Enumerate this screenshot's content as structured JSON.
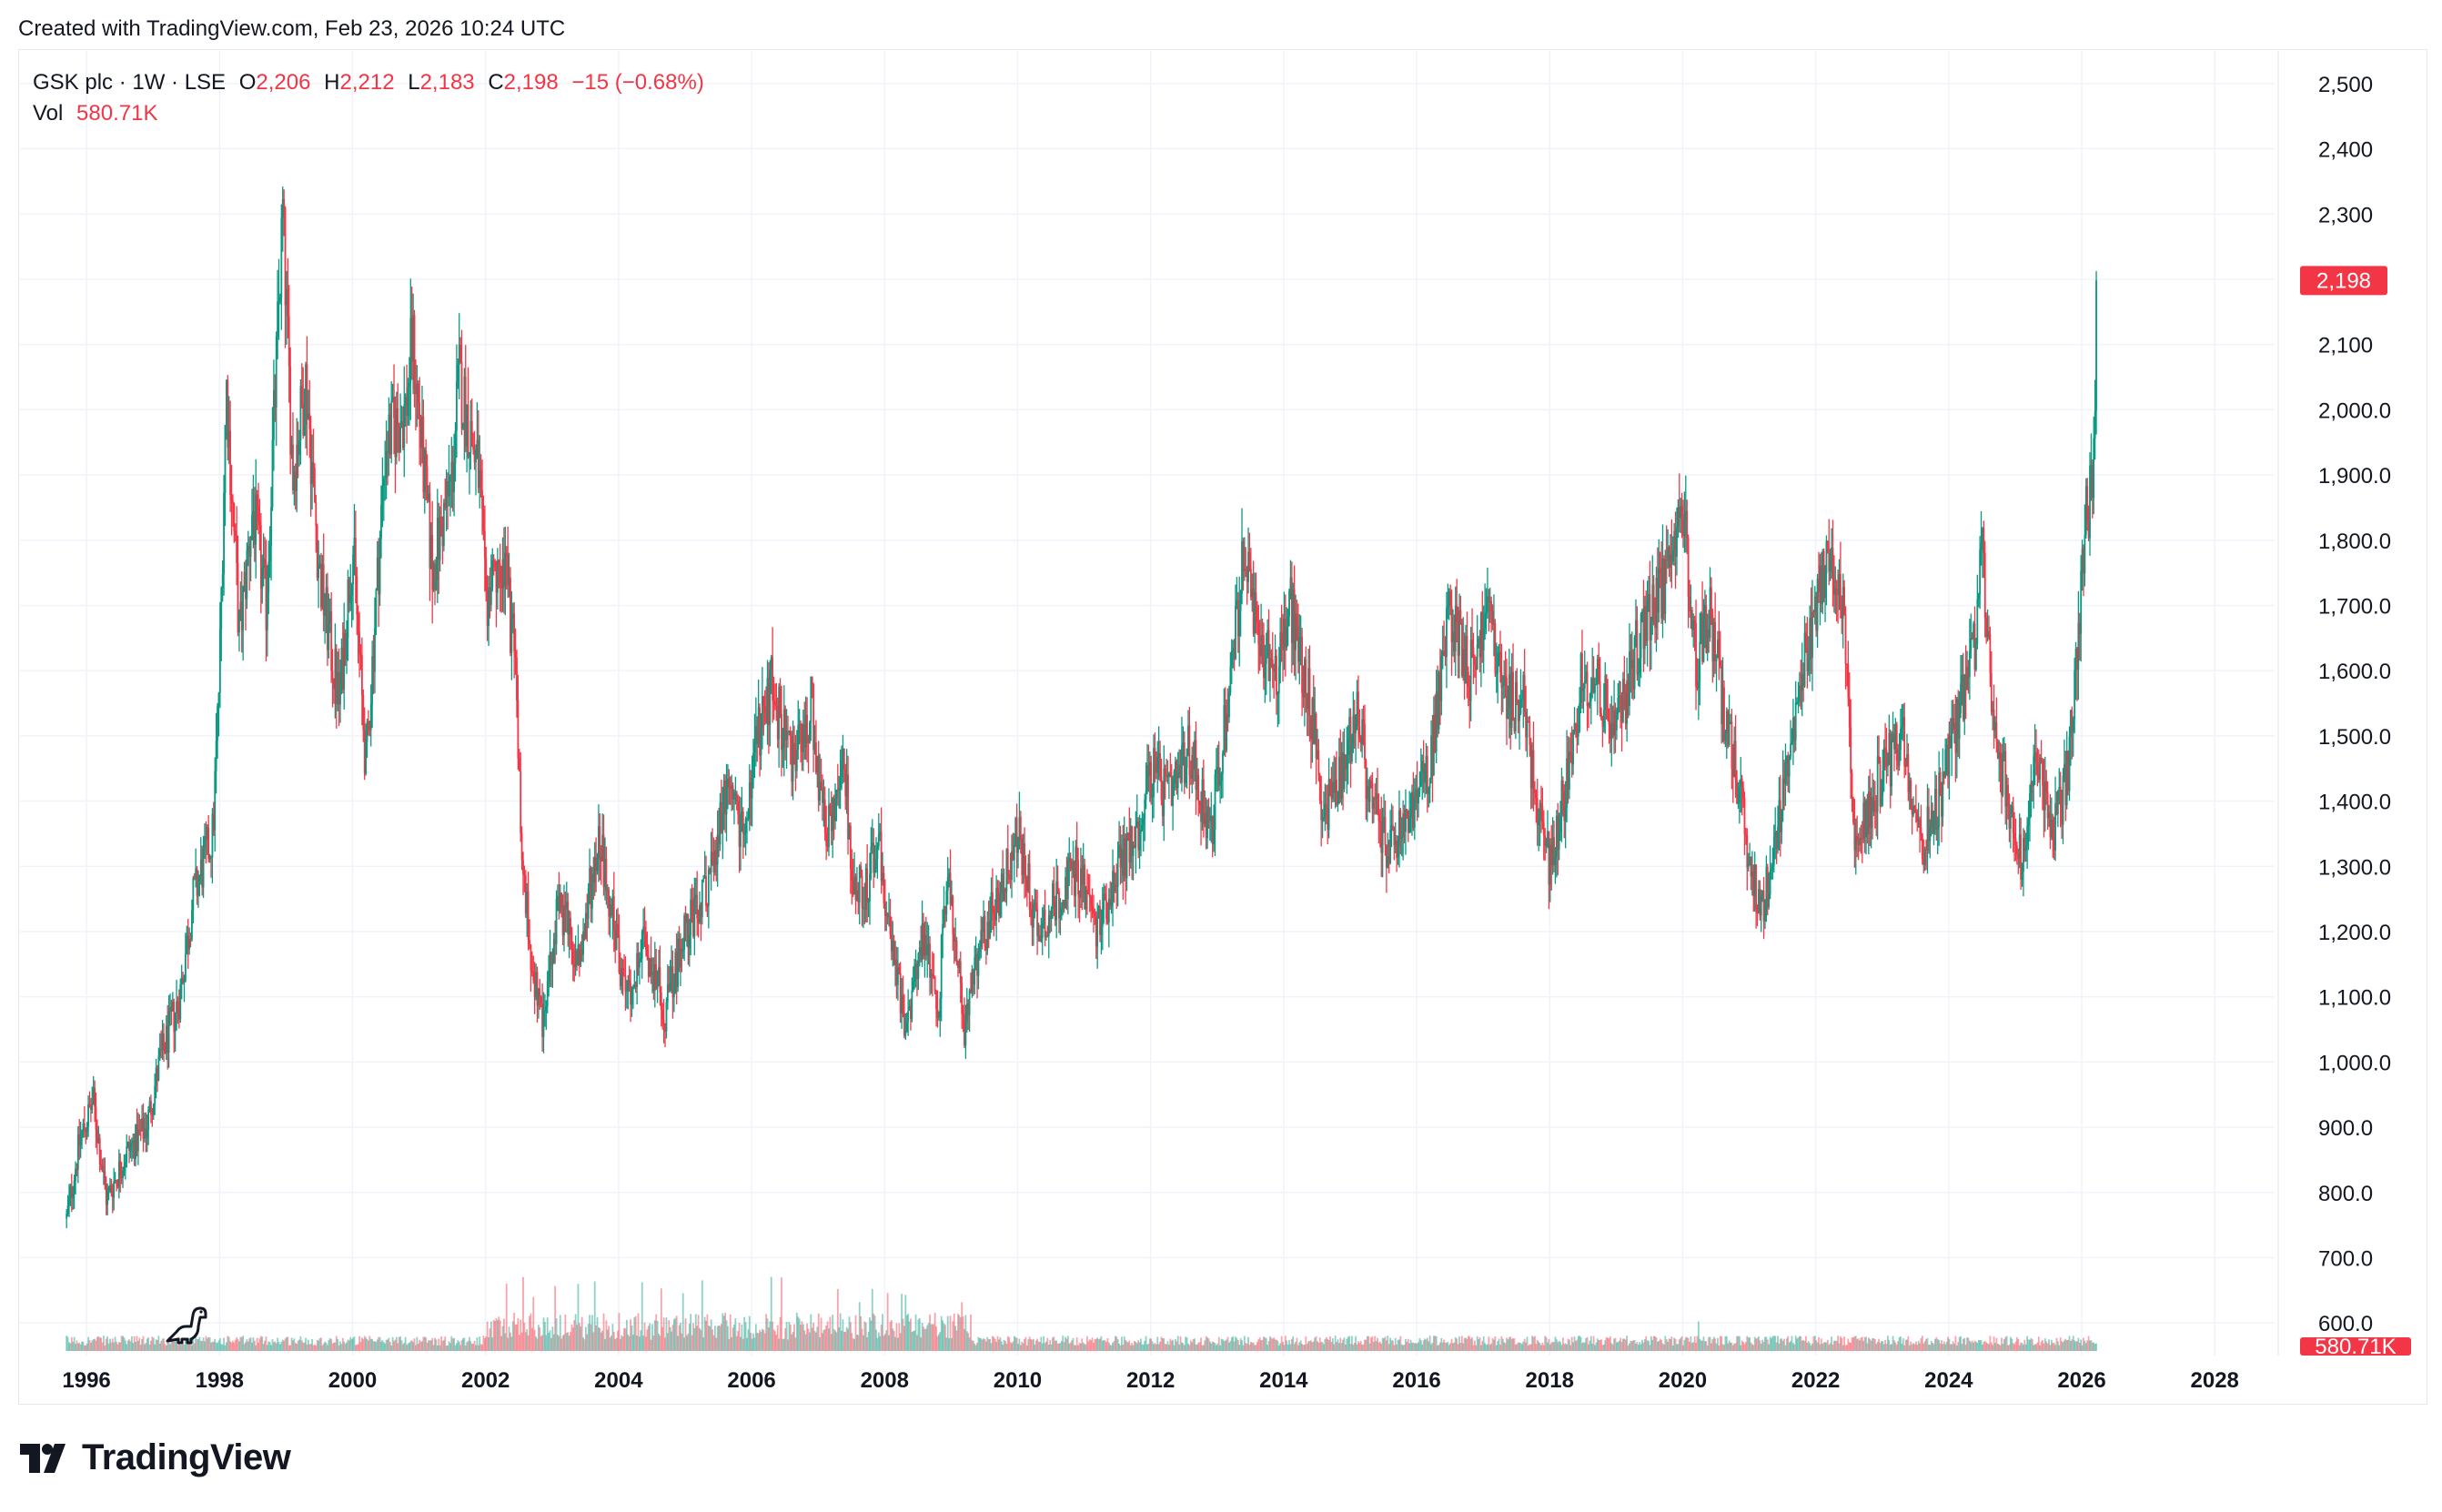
{
  "header": {
    "created_text": "Created with TradingView.com, Feb 23, 2026 10:24 UTC"
  },
  "legend": {
    "symbol": "GSK plc · 1W · LSE",
    "open_label": "O",
    "open": "2,206",
    "high_label": "H",
    "high": "2,212",
    "low_label": "L",
    "low": "2,183",
    "close_label": "C",
    "close": "2,198",
    "change": "−15 (−0.68%)",
    "vol_label": "Vol",
    "vol": "580.71K"
  },
  "price_tag": "2,198",
  "vol_tag": "580.71K",
  "brand": {
    "name": "TradingView",
    "icon": "tradingview-logo-icon"
  },
  "colors": {
    "up": "#089981",
    "down": "#f23645",
    "grid": "#f0f3fa",
    "text": "#131722"
  },
  "chart_data": {
    "type": "candlestick",
    "interval": "1W",
    "y_axis": {
      "min": 650,
      "max": 2550,
      "ticks": [
        "2,500",
        "2,400",
        "2,300",
        "2,200",
        "2,100",
        "2,000.0",
        "1,900.0",
        "1,800.0",
        "1,700.0",
        "1,600.0",
        "1,500.0",
        "1,400.0",
        "1,300.0",
        "1,200.0",
        "1,100.0",
        "1,000.0",
        "900.0",
        "800.0",
        "700.0",
        "600.0"
      ]
    },
    "x_axis": {
      "min": 1995.0,
      "max": 2028.9,
      "ticks": [
        "1996",
        "1998",
        "2000",
        "2002",
        "2004",
        "2006",
        "2008",
        "2010",
        "2012",
        "2014",
        "2016",
        "2018",
        "2020",
        "2022",
        "2024",
        "2026",
        "2028"
      ]
    },
    "price_path": [
      [
        1995.7,
        760
      ],
      [
        1995.9,
        880
      ],
      [
        1996.1,
        940
      ],
      [
        1996.3,
        790
      ],
      [
        1996.6,
        860
      ],
      [
        1996.9,
        900
      ],
      [
        1997.1,
        1000
      ],
      [
        1997.4,
        1100
      ],
      [
        1997.6,
        1250
      ],
      [
        1997.9,
        1350
      ],
      [
        1998.0,
        1600
      ],
      [
        1998.1,
        2040
      ],
      [
        1998.3,
        1650
      ],
      [
        1998.5,
        1850
      ],
      [
        1998.7,
        1700
      ],
      [
        1998.95,
        2300
      ],
      [
        1999.1,
        1900
      ],
      [
        1999.3,
        2050
      ],
      [
        1999.5,
        1750
      ],
      [
        1999.8,
        1550
      ],
      [
        2000.0,
        1800
      ],
      [
        2000.2,
        1450
      ],
      [
        2000.5,
        1950
      ],
      [
        2000.8,
        2000
      ],
      [
        2000.9,
        2110
      ],
      [
        2001.2,
        1750
      ],
      [
        2001.5,
        1900
      ],
      [
        2001.6,
        2050
      ],
      [
        2001.9,
        1900
      ],
      [
        2002.0,
        1700
      ],
      [
        2002.3,
        1750
      ],
      [
        2002.45,
        1600
      ],
      [
        2002.55,
        1300
      ],
      [
        2002.7,
        1150
      ],
      [
        2002.85,
        1050
      ],
      [
        2003.1,
        1250
      ],
      [
        2003.4,
        1150
      ],
      [
        2003.7,
        1350
      ],
      [
        2004.1,
        1100
      ],
      [
        2004.4,
        1180
      ],
      [
        2004.7,
        1080
      ],
      [
        2005.0,
        1200
      ],
      [
        2005.3,
        1250
      ],
      [
        2005.6,
        1400
      ],
      [
        2005.9,
        1350
      ],
      [
        2006.1,
        1500
      ],
      [
        2006.3,
        1580
      ],
      [
        2006.6,
        1450
      ],
      [
        2006.9,
        1550
      ],
      [
        2007.1,
        1350
      ],
      [
        2007.4,
        1450
      ],
      [
        2007.5,
        1300
      ],
      [
        2007.7,
        1250
      ],
      [
        2007.9,
        1350
      ],
      [
        2008.1,
        1180
      ],
      [
        2008.3,
        1050
      ],
      [
        2008.6,
        1200
      ],
      [
        2008.8,
        1080
      ],
      [
        2008.95,
        1300
      ],
      [
        2009.2,
        1050
      ],
      [
        2009.5,
        1200
      ],
      [
        2009.8,
        1280
      ],
      [
        2010.0,
        1350
      ],
      [
        2010.3,
        1200
      ],
      [
        2010.6,
        1250
      ],
      [
        2010.9,
        1300
      ],
      [
        2011.2,
        1200
      ],
      [
        2011.5,
        1300
      ],
      [
        2011.8,
        1350
      ],
      [
        2012.0,
        1450
      ],
      [
        2012.3,
        1400
      ],
      [
        2012.6,
        1480
      ],
      [
        2012.9,
        1350
      ],
      [
        2013.1,
        1500
      ],
      [
        2013.4,
        1780
      ],
      [
        2013.6,
        1650
      ],
      [
        2013.9,
        1600
      ],
      [
        2014.1,
        1700
      ],
      [
        2014.4,
        1550
      ],
      [
        2014.6,
        1380
      ],
      [
        2014.9,
        1450
      ],
      [
        2015.1,
        1550
      ],
      [
        2015.3,
        1400
      ],
      [
        2015.6,
        1320
      ],
      [
        2015.9,
        1380
      ],
      [
        2016.2,
        1450
      ],
      [
        2016.5,
        1700
      ],
      [
        2016.8,
        1600
      ],
      [
        2017.1,
        1700
      ],
      [
        2017.3,
        1560
      ],
      [
        2017.6,
        1550
      ],
      [
        2017.8,
        1400
      ],
      [
        2018.0,
        1300
      ],
      [
        2018.2,
        1400
      ],
      [
        2018.5,
        1600
      ],
      [
        2018.8,
        1560
      ],
      [
        2019.0,
        1500
      ],
      [
        2019.3,
        1640
      ],
      [
        2019.6,
        1700
      ],
      [
        2019.9,
        1780
      ],
      [
        2020.0,
        1850
      ],
      [
        2020.2,
        1600
      ],
      [
        2020.4,
        1700
      ],
      [
        2020.6,
        1550
      ],
      [
        2020.8,
        1450
      ],
      [
        2021.0,
        1300
      ],
      [
        2021.2,
        1230
      ],
      [
        2021.4,
        1350
      ],
      [
        2021.6,
        1450
      ],
      [
        2021.8,
        1600
      ],
      [
        2022.0,
        1700
      ],
      [
        2022.2,
        1780
      ],
      [
        2022.4,
        1700
      ],
      [
        2022.6,
        1330
      ],
      [
        2022.9,
        1420
      ],
      [
        2023.1,
        1460
      ],
      [
        2023.3,
        1500
      ],
      [
        2023.6,
        1330
      ],
      [
        2023.9,
        1420
      ],
      [
        2024.2,
        1560
      ],
      [
        2024.4,
        1650
      ],
      [
        2024.5,
        1780
      ],
      [
        2024.7,
        1500
      ],
      [
        2024.9,
        1400
      ],
      [
        2025.1,
        1310
      ],
      [
        2025.3,
        1450
      ],
      [
        2025.6,
        1360
      ],
      [
        2025.8,
        1450
      ],
      [
        2025.95,
        1650
      ],
      [
        2026.05,
        1820
      ],
      [
        2026.15,
        1880
      ],
      [
        2026.2,
        2000
      ],
      [
        2026.22,
        2198
      ]
    ],
    "last_close": 2198,
    "volume_note": "weekly volume bars along bottom"
  }
}
